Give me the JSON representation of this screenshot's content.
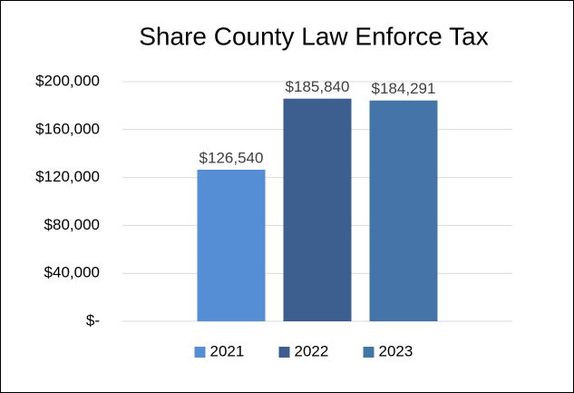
{
  "chart_data": {
    "type": "bar",
    "title": "Share County Law Enforce Tax",
    "categories": [
      null
    ],
    "series": [
      {
        "name": "2021",
        "color": "#558ed5",
        "values": [
          126540
        ],
        "value_labels": [
          "$126,540"
        ]
      },
      {
        "name": "2022",
        "color": "#3d5f8f",
        "values": [
          185840
        ],
        "value_labels": [
          "$185,840"
        ]
      },
      {
        "name": "2023",
        "color": "#4574a8",
        "values": [
          184291
        ],
        "value_labels": [
          "$184,291"
        ]
      }
    ],
    "ylim": [
      0,
      200000
    ],
    "yticks": [
      {
        "value": 0,
        "label": "$-"
      },
      {
        "value": 40000,
        "label": "$40,000"
      },
      {
        "value": 80000,
        "label": "$80,000"
      },
      {
        "value": 120000,
        "label": "$120,000"
      },
      {
        "value": 160000,
        "label": "$160,000"
      },
      {
        "value": 200000,
        "label": "$200,000"
      }
    ],
    "grid": true,
    "legend": "bottom"
  }
}
